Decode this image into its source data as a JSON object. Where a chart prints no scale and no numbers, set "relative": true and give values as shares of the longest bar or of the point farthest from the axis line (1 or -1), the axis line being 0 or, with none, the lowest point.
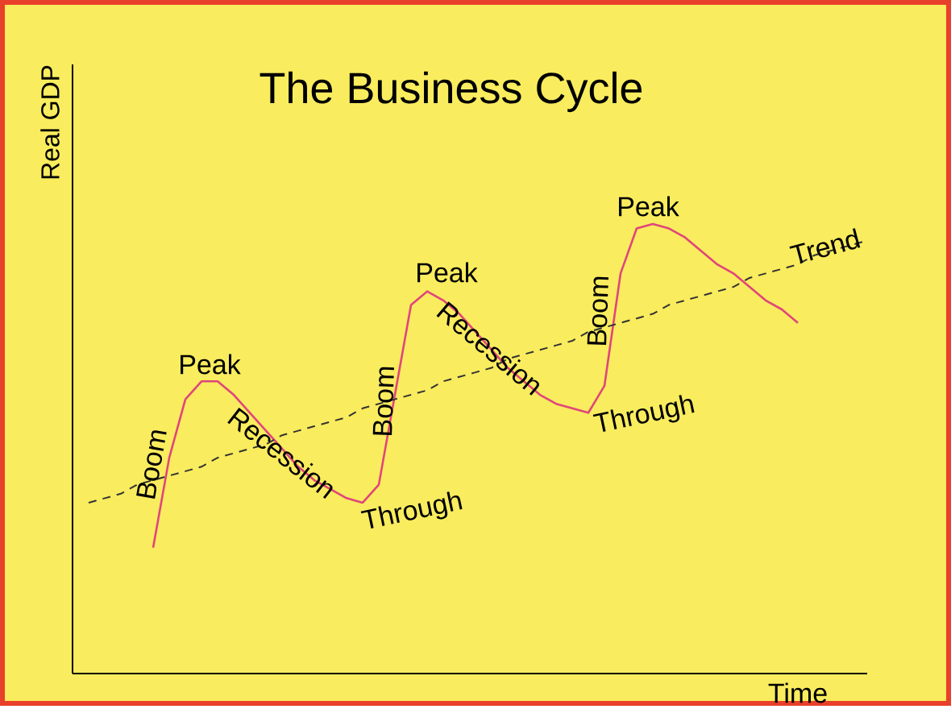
{
  "chart_data": {
    "type": "line",
    "title": "The Business Cycle",
    "xlabel": "Time",
    "ylabel": "Real GDP",
    "relative": true,
    "marker": "none",
    "categories": [
      null,
      null,
      null,
      null,
      null,
      null,
      null,
      null,
      null,
      null,
      null,
      null,
      null,
      null,
      null,
      null,
      null,
      null,
      null,
      null,
      null,
      null,
      null,
      null,
      null,
      null,
      null,
      null,
      null,
      null,
      null,
      null,
      null,
      null,
      null,
      null,
      null,
      null,
      null,
      null,
      null,
      null,
      null,
      null,
      null,
      null,
      null,
      null,
      null
    ],
    "series": [
      {
        "color": "#e0457b",
        "line_style": "solid",
        "values": [
          null,
          null,
          null,
          null,
          0.28,
          0.48,
          0.61,
          0.65,
          0.65,
          0.62,
          0.58,
          0.54,
          0.5,
          0.46,
          0.43,
          0.41,
          0.39,
          0.38,
          0.42,
          0.62,
          0.82,
          0.85,
          0.83,
          0.8,
          0.76,
          0.72,
          0.68,
          0.65,
          0.62,
          0.6,
          0.59,
          0.58,
          0.64,
          0.89,
          0.99,
          1.0,
          0.99,
          0.97,
          0.94,
          0.91,
          0.89,
          0.86,
          0.83,
          0.81,
          0.78,
          null,
          null,
          null,
          null
        ]
      },
      {
        "name": "Trend",
        "color": "#333333",
        "line_style": "dashed",
        "values": [
          0.38,
          0.39,
          0.4,
          0.42,
          0.43,
          0.44,
          0.45,
          0.46,
          0.48,
          0.49,
          0.5,
          0.51,
          0.53,
          0.54,
          0.55,
          0.56,
          0.57,
          0.59,
          0.6,
          0.61,
          0.62,
          0.63,
          0.65,
          0.66,
          0.67,
          0.68,
          0.7,
          0.71,
          0.72,
          0.73,
          0.74,
          0.76,
          0.77,
          0.78,
          0.79,
          0.8,
          0.82,
          0.83,
          0.84,
          0.85,
          0.86,
          0.88,
          0.89,
          0.9,
          0.91,
          0.93,
          0.94,
          0.95,
          0.96
        ]
      }
    ],
    "annotations": [
      "Peak",
      "Boom",
      "Recession",
      "Through",
      "Peak",
      "Boom",
      "Recession",
      "Through",
      "Peak",
      "Boom"
    ]
  }
}
